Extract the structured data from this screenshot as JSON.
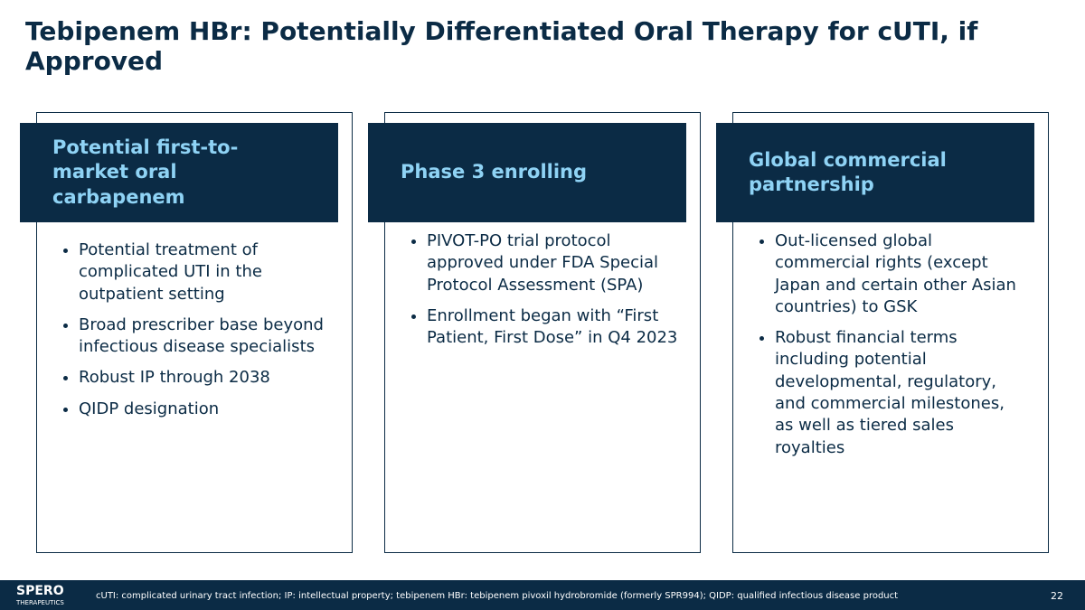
{
  "header": {
    "title": "Tebipenem HBr: Potentially Differentiated Oral Therapy for cUTI, if Approved"
  },
  "cards": [
    {
      "heading": "Potential first-to-market oral carbapenem",
      "bullets": [
        "Potential treatment of complicated UTI in the outpatient setting",
        "Broad prescriber base beyond infectious disease specialists",
        "Robust IP through 2038",
        "QIDP designation"
      ]
    },
    {
      "heading": "Phase 3 enrolling",
      "bullets": [
        "PIVOT-PO trial protocol approved under FDA Special Protocol Assessment (SPA)",
        "Enrollment began with “First Patient, First Dose” in Q4 2023"
      ]
    },
    {
      "heading": "Global commercial partnership",
      "bullets": [
        "Out-licensed global commercial rights (except Japan and certain other Asian countries) to GSK",
        "Robust financial terms including potential developmental, regulatory, and commercial milestones, as well as tiered sales royalties"
      ]
    }
  ],
  "footer": {
    "logo": "SPERO",
    "logo_sub": "THERAPEUTICS",
    "note": "cUTI: complicated urinary tract infection; IP: intellectual property; tebipenem HBr: tebipenem pivoxil hydrobromide (formerly SPR994); QIDP: qualified infectious disease product",
    "page": "22"
  }
}
